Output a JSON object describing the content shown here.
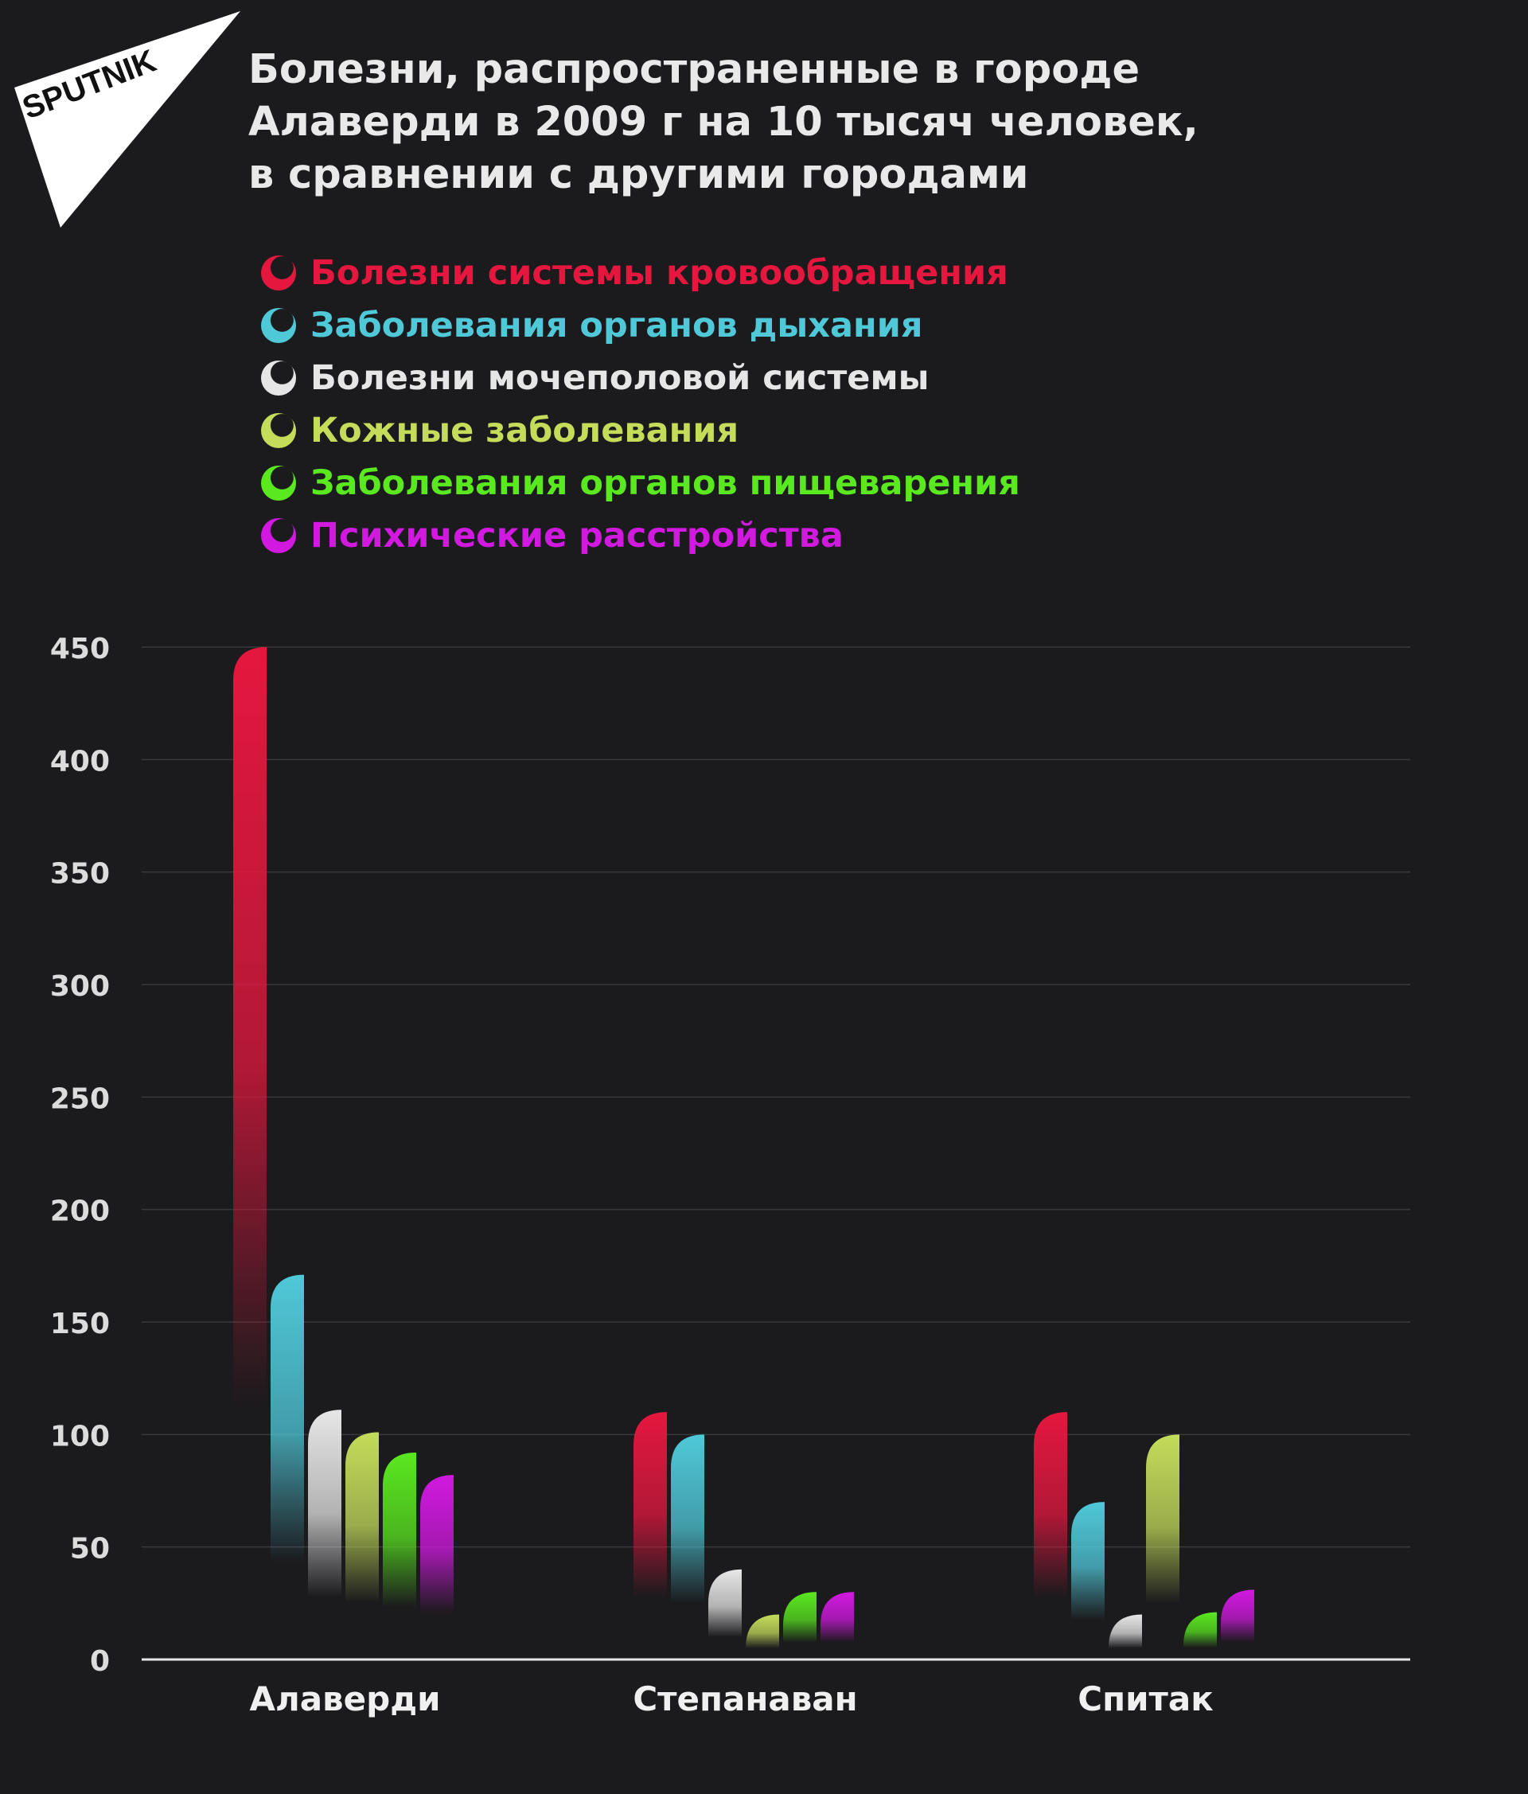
{
  "brand": {
    "logo_text": "SPUTNIK"
  },
  "header": {
    "title_lines": [
      "Болезни, распространенные в городе",
      "Алаверди в 2009 г на 10 тысяч человек,",
      "в сравнении с другими городами"
    ]
  },
  "legend": [
    {
      "label": "Болезни системы кровообращения",
      "color": "#e5173f"
    },
    {
      "label": "Заболевания органов дыхания",
      "color": "#4fc8d8"
    },
    {
      "label": "Болезни мочеполовой системы",
      "color": "#e6e6e6"
    },
    {
      "label": "Кожные заболевания",
      "color": "#c4dc5a"
    },
    {
      "label": "Заболевания органов пищеварения",
      "color": "#5ae81f"
    },
    {
      "label": "Психические расстройства",
      "color": "#d119e0"
    }
  ],
  "chart_data": {
    "type": "bar",
    "title": "Болезни, распространенные в городе Алаверди в 2009 г на 10 тысяч человек, в сравнении с другими городами",
    "categories": [
      "Алаверди",
      "Степанаван",
      "Спитак"
    ],
    "series": [
      {
        "name": "Болезни системы кровообращения",
        "values": [
          450,
          110,
          110
        ],
        "color": "#e5173f"
      },
      {
        "name": "Заболевания органов дыхания",
        "values": [
          171,
          100,
          70
        ],
        "color": "#4fc8d8"
      },
      {
        "name": "Болезни мочеполовой системы",
        "values": [
          111,
          40,
          20
        ],
        "color": "#e6e6e6"
      },
      {
        "name": "Кожные заболевания",
        "values": [
          101,
          20,
          100
        ],
        "color": "#c4dc5a"
      },
      {
        "name": "Заболевания органов пищеварения",
        "values": [
          92,
          30,
          21
        ],
        "color": "#5ae81f"
      },
      {
        "name": "Психические расстройства",
        "values": [
          82,
          30,
          31
        ],
        "color": "#d119e0"
      }
    ],
    "yticks": [
      "0",
      "50",
      "100",
      "150",
      "200",
      "250",
      "300",
      "350",
      "400",
      "450"
    ],
    "ylim": [
      0,
      450
    ],
    "xlabel": "",
    "ylabel": "",
    "grid": true,
    "legend_position": "top"
  }
}
